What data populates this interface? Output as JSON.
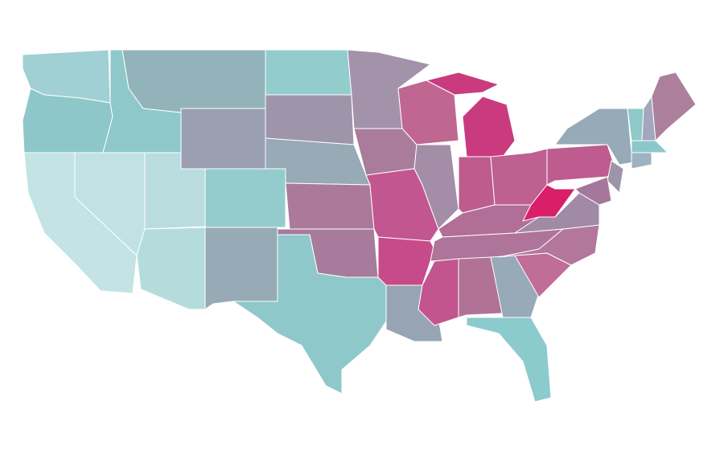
{
  "map": {
    "background": "#ffffff",
    "border_color": "#ffffff",
    "regions": [
      {
        "color": "#a0d0d3"
      },
      {
        "color": "#8ec7c9"
      },
      {
        "color": "#c3e3e5"
      },
      {
        "color": "#c0e2e3"
      },
      {
        "color": "#8ec8cb"
      },
      {
        "color": "#93b3bb"
      },
      {
        "color": "#9a9fb2"
      },
      {
        "color": "#b9dddf"
      },
      {
        "color": "#94ccce"
      },
      {
        "color": "#b4dcdd"
      },
      {
        "color": "#96abb5"
      },
      {
        "color": "#93cccd"
      },
      {
        "color": "#9f95ab"
      },
      {
        "color": "#97aab6"
      },
      {
        "color": "#ab7a9b"
      },
      {
        "color": "#a67b9b"
      },
      {
        "color": "#8fc8cb"
      },
      {
        "color": "#a293ab"
      },
      {
        "color": "#a97c9b"
      },
      {
        "color": "#c25690"
      },
      {
        "color": "#c74b8a"
      },
      {
        "color": "#96a4b4"
      },
      {
        "color": "#bf6791"
      },
      {
        "color": "#a38da7"
      },
      {
        "color": "#c93b7e"
      },
      {
        "color": "#c93b7e"
      },
      {
        "color": "#be5c8e"
      },
      {
        "color": "#be6090"
      },
      {
        "color": "#b16e97"
      },
      {
        "color": "#af7499"
      },
      {
        "color": "#c2558d"
      },
      {
        "color": "#b17295"
      },
      {
        "color": "#98a9b7"
      },
      {
        "color": "#8ccbcd"
      },
      {
        "color": "#c06d97"
      },
      {
        "color": "#b3779c"
      },
      {
        "color": "#a08aa6"
      },
      {
        "color": "#d81f68"
      },
      {
        "color": "#bf5c8f"
      },
      {
        "color": "#96aab8"
      },
      {
        "color": "#8ec8c8"
      },
      {
        "color": "#a4a6bb"
      },
      {
        "color": "#ac809c"
      },
      {
        "color": "#8cc8cb"
      },
      {
        "color": "#9eb3bf"
      },
      {
        "color": "#9d93ab"
      },
      {
        "color": "#a6779c"
      }
    ]
  }
}
